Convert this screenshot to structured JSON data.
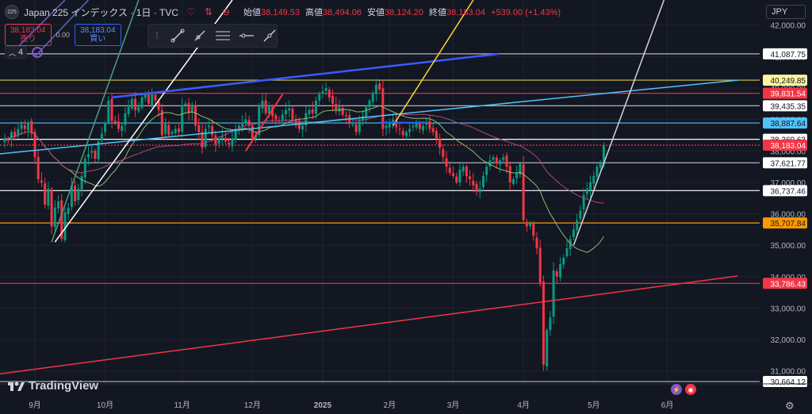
{
  "header": {
    "symbol_badge": "225",
    "title": "Japan 225 インデックス · 1日 · TVC",
    "ohlc": [
      {
        "label": "始値",
        "value": "38,149.53"
      },
      {
        "label": "高値",
        "value": "38,494.06"
      },
      {
        "label": "安値",
        "value": "38,124.20"
      },
      {
        "label": "終値",
        "value": "38,183.04"
      }
    ],
    "change": "+539.00 (+1.43%)"
  },
  "trade": {
    "sell_price": "38,183.04",
    "sell_label": "売り",
    "spread": "0.00",
    "buy_price": "38,183.04",
    "buy_label": "買い"
  },
  "indicator_row": {
    "count": "4"
  },
  "currency": "JPY",
  "logo_text": "TradingView",
  "chart_data": {
    "type": "candlestick",
    "title": "Japan 225 インデックス · 1日 · TVC",
    "x_labels": [
      {
        "label": "9月",
        "bar": 9
      },
      {
        "label": "10月",
        "bar": 30
      },
      {
        "label": "11月",
        "bar": 53
      },
      {
        "label": "12月",
        "bar": 74
      },
      {
        "label": "2025",
        "bar": 95
      },
      {
        "label": "2月",
        "bar": 115
      },
      {
        "label": "3月",
        "bar": 134
      },
      {
        "label": "4月",
        "bar": 155
      },
      {
        "label": "5月",
        "bar": 176
      },
      {
        "label": "6月",
        "bar": 198
      }
    ],
    "y_ticks": [
      31000,
      32000,
      33000,
      34000,
      35000,
      36000,
      37000,
      38000,
      39000,
      40000,
      41000,
      42000
    ],
    "y_tick_labels": [
      "31,000.00",
      "32,000.00",
      "33,000.00",
      "34,000.00",
      "35,000.00",
      "36,000.00",
      "37,000.00",
      "38,000.00",
      "39,000.00",
      "40,000.00",
      "41,000.00",
      "42,000.00"
    ],
    "ylim": [
      30590,
      42800
    ],
    "xlim_bars": [
      0,
      219
    ],
    "candle_up_color": "#089981",
    "candle_down_color": "#f23645",
    "closes": [
      38400,
      38350,
      38600,
      38450,
      38700,
      38850,
      38700,
      38900,
      38550,
      37800,
      37100,
      37000,
      36300,
      36800,
      35600,
      36200,
      36400,
      35200,
      36050,
      36200,
      36900,
      36400,
      36800,
      37200,
      37750,
      37900,
      38000,
      37750,
      38300,
      38550,
      38900,
      39600,
      38950,
      38900,
      38700,
      38800,
      39200,
      39400,
      39650,
      39300,
      39400,
      39700,
      39800,
      39500,
      39800,
      39600,
      39300,
      38500,
      38850,
      38500,
      38600,
      38700,
      38600,
      39450,
      39500,
      39200,
      39400,
      38800,
      38600,
      38100,
      38700,
      38800,
      38500,
      38200,
      38400,
      38450,
      38300,
      38200,
      38400,
      38700,
      38800,
      38900,
      39000,
      38800,
      38400,
      38500,
      39400,
      39600,
      39200,
      39450,
      39100,
      39000,
      38950,
      39150,
      39300,
      39350,
      39000,
      38900,
      38700,
      38800,
      39200,
      39300,
      39200,
      39600,
      39800,
      39900,
      40000,
      39700,
      39500,
      39300,
      39400,
      39150,
      39100,
      38900,
      38850,
      38600,
      38950,
      39100,
      39400,
      39600,
      39850,
      40100,
      39950,
      38700,
      38800,
      38900,
      39000,
      38750,
      38700,
      38500,
      38600,
      38700,
      38800,
      38900,
      38700,
      38800,
      38900,
      38700,
      38600,
      38400,
      38100,
      37800,
      37500,
      37300,
      37200,
      37000,
      37400,
      37500,
      37200,
      37100,
      36900,
      36700,
      36800,
      37200,
      37500,
      37700,
      37800,
      37600,
      37700,
      37800,
      37500,
      37000,
      37100,
      37300,
      37600,
      35800,
      35600,
      35700,
      35300,
      34900,
      33800,
      31200,
      32300,
      32700,
      34200,
      34000,
      34400,
      34600,
      34900,
      35200,
      35500,
      35800,
      36100,
      36600,
      36800,
      37000,
      37200,
      37500,
      37600,
      38183
    ],
    "moving_averages": [
      {
        "name": "MA fast",
        "color": "#8bbd6e"
      },
      {
        "name": "MA slow",
        "color": "#b04a78"
      }
    ],
    "horizontal_levels": [
      {
        "price": 41087.75,
        "label": "41,087.75",
        "color": "#b2b5be",
        "label_bg": "#ffffff",
        "label_color": "#131722"
      },
      {
        "price": 40249.85,
        "label": "40,249.85",
        "color": "#d4c64f",
        "label_bg": "#fff59d",
        "label_color": "#131722"
      },
      {
        "price": 39831.54,
        "label": "39,831.54",
        "color": "#f23645",
        "label_bg": "#f23645",
        "label_color": "#ffffff"
      },
      {
        "price": 39435.35,
        "label": "39,435.35",
        "color": "#b2b5be",
        "label_bg": "#ffffff",
        "label_color": "#131722"
      },
      {
        "price": 38887.64,
        "label": "38,887.64",
        "color": "#4fc3f7",
        "label_bg": "#4fc3f7",
        "label_color": "#131722"
      },
      {
        "price": 38369.63,
        "label": "38,369.63",
        "color": "#ffffff",
        "label_bg": "#ffffff",
        "label_color": "#131722"
      },
      {
        "price": 38183.04,
        "label": "38,183.04",
        "color": "#f23645",
        "label_bg": "#f23645",
        "label_color": "#ffffff",
        "dashed": true
      },
      {
        "price": 37621.77,
        "label": "37,621.77",
        "color": "#b2b5be",
        "label_bg": "#ffffff",
        "label_color": "#131722"
      },
      {
        "price": 36737.46,
        "label": "36,737.46",
        "color": "#ffffff",
        "label_bg": "#ffffff",
        "label_color": "#131722"
      },
      {
        "price": 35707.84,
        "label": "35,707.84",
        "color": "#ff9800",
        "label_bg": "#ff9800",
        "label_color": "#131722"
      },
      {
        "price": 33786.43,
        "label": "33,786.43",
        "color": "#f23645",
        "label_bg": "#f23645",
        "label_color": "#ffffff"
      },
      {
        "price": 30664.12,
        "label": "30,664.12",
        "color": "#b2b5be",
        "label_bg": "#ffffff",
        "label_color": "#131722"
      }
    ],
    "trend_lines": [
      {
        "bar1": -2,
        "price1": 30900,
        "bar2": 219,
        "price2": 34020,
        "color": "#f23645"
      },
      {
        "bar1": -2,
        "price1": 37900,
        "bar2": 219,
        "price2": 40250,
        "color": "#4fc3f7"
      },
      {
        "bar1": 15,
        "price1": 35100,
        "bar2": 68,
        "price2": 42800,
        "color": "#ffffff"
      },
      {
        "bar1": 14,
        "price1": 35100,
        "bar2": 40,
        "price2": 42800,
        "color": "#4e9e7e"
      },
      {
        "bar1": 1,
        "price1": 41000,
        "bar2": 18,
        "price2": 42800,
        "color": "#7e57c2"
      },
      {
        "bar1": 9,
        "price1": 41000,
        "bar2": 25,
        "price2": 42800,
        "color": "#5c6bc0"
      },
      {
        "bar1": 32,
        "price1": 39700,
        "bar2": 148,
        "price2": 41090,
        "color": "#3d5afe",
        "width": 2.5
      },
      {
        "bar1": 116,
        "price1": 38800,
        "bar2": 140,
        "price2": 42800,
        "color": "#fdd835"
      },
      {
        "bar1": 170,
        "price1": 35000,
        "bar2": 197,
        "price2": 42800,
        "color": "#d1d4dc"
      },
      {
        "bar1": 72,
        "price1": 38000,
        "bar2": 83,
        "price2": 39800,
        "color": "#f23645",
        "width": 2
      },
      {
        "bar1": 112,
        "price1": 38900,
        "bar2": 126,
        "price2": 38900,
        "color": "#2962ff",
        "width": 2
      }
    ]
  }
}
